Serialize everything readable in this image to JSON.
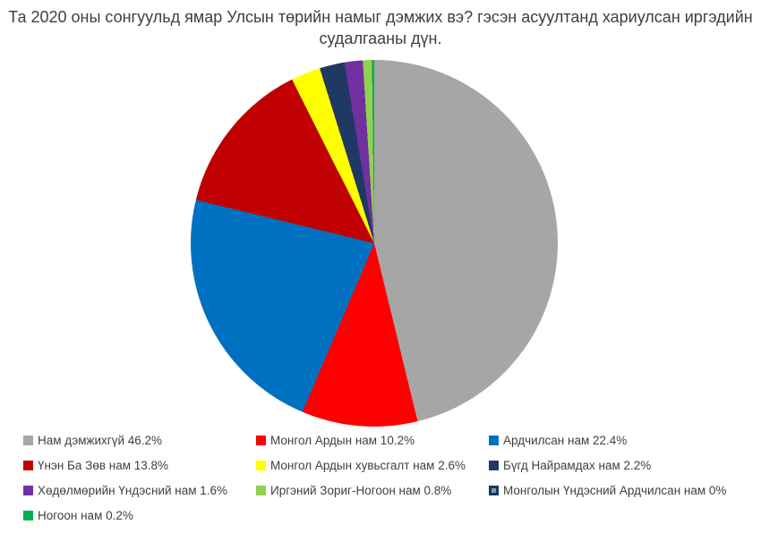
{
  "header": {
    "title_lines": [
      "Та 2020 оны сонгуульд ямар Улсын төрийн намыг дэмжих вэ? гэсэн асуултанд хариулсан иргэдийн",
      "судалгааны дүн."
    ]
  },
  "chart_data": {
    "type": "pie",
    "title": "Та 2020 оны сонгуульд ямар Улсын төрийн намыг дэмжих вэ? гэсэн асуултанд хариулсан иргэдийн судалгааны дүн.",
    "unit": "%",
    "start_angle_deg": 0,
    "direction": "clockwise",
    "legend_position": "bottom",
    "legend_columns": 3,
    "slices": [
      {
        "label": "Нам дэмжихгүй",
        "value": 46.2,
        "color": "#A6A6A6"
      },
      {
        "label": "Монгол Ардын нам",
        "value": 10.2,
        "color": "#FF0000"
      },
      {
        "label": "Ардчилсан нам",
        "value": 22.4,
        "color": "#0070C0"
      },
      {
        "label": "Үнэн Ба Зөв нам",
        "value": 13.8,
        "color": "#C00000"
      },
      {
        "label": "Монгол Ардын хувьсгалт нам",
        "value": 2.6,
        "color": "#FFFF00"
      },
      {
        "label": "Бүгд Найрамдах нам",
        "value": 2.2,
        "color": "#1F3864"
      },
      {
        "label": "Хөдөлмөрийн Үндэсний нам",
        "value": 1.6,
        "color": "#7030A0"
      },
      {
        "label": "Иргэний Зориг-Ногоон нам",
        "value": 0.8,
        "color": "#92D050"
      },
      {
        "label": "Монголын Үндэсний Ардчилсан нам",
        "value": 0,
        "color": "#17375E",
        "swatch_inner": "#8496B0"
      },
      {
        "label": "Ногоон нам",
        "value": 0.2,
        "color": "#00B050"
      }
    ]
  }
}
